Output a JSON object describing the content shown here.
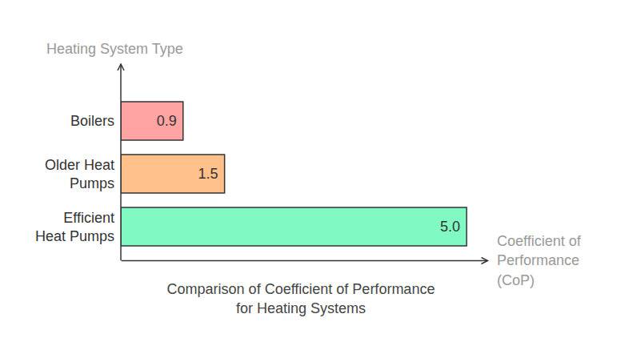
{
  "chart_data": {
    "type": "bar",
    "orientation": "horizontal",
    "title": "Comparison of Coefficient of Performance for Heating Systems",
    "x_label": "Coefficient of Performance (CoP)",
    "y_label": "Heating System Type",
    "categories": [
      "Boilers",
      "Older Heat Pumps",
      "Efficient Heat Pumps"
    ],
    "values": [
      0.9,
      1.5,
      5.0
    ],
    "value_labels": [
      "0.9",
      "1.5",
      "5.0"
    ],
    "colors": [
      "#ffa3a3",
      "#ffc08a",
      "#80f9c3"
    ],
    "xlim": [
      0,
      5.3
    ],
    "data_labels": true,
    "tick_labels": "y",
    "grid": false
  }
}
